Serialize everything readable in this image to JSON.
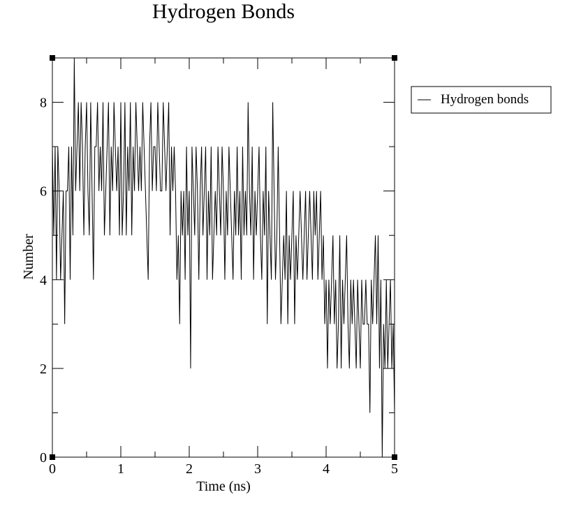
{
  "chart_data": {
    "type": "line",
    "title": "Hydrogen Bonds",
    "xlabel": "Time (ns)",
    "ylabel": "Number",
    "xlim": [
      0,
      5
    ],
    "ylim": [
      0,
      9
    ],
    "x_ticks": [
      0,
      1,
      2,
      3,
      4,
      5
    ],
    "y_ticks": [
      0,
      2,
      4,
      6,
      8
    ],
    "grid": false,
    "legend_position": "top-right outside",
    "series": [
      {
        "name": "Hydrogen bonds",
        "color": "#000000",
        "x": [
          0.0,
          0.02,
          0.04,
          0.06,
          0.08,
          0.1,
          0.12,
          0.14,
          0.16,
          0.18,
          0.2,
          0.22,
          0.24,
          0.26,
          0.28,
          0.3,
          0.32,
          0.34,
          0.36,
          0.38,
          0.4,
          0.42,
          0.44,
          0.46,
          0.48,
          0.5,
          0.52,
          0.54,
          0.56,
          0.58,
          0.6,
          0.62,
          0.64,
          0.66,
          0.68,
          0.7,
          0.72,
          0.74,
          0.76,
          0.78,
          0.8,
          0.82,
          0.84,
          0.86,
          0.88,
          0.9,
          0.92,
          0.94,
          0.96,
          0.98,
          1.0,
          1.02,
          1.04,
          1.06,
          1.08,
          1.1,
          1.12,
          1.14,
          1.16,
          1.18,
          1.2,
          1.22,
          1.24,
          1.26,
          1.28,
          1.3,
          1.32,
          1.34,
          1.36,
          1.38,
          1.4,
          1.42,
          1.44,
          1.46,
          1.48,
          1.5,
          1.52,
          1.54,
          1.56,
          1.58,
          1.6,
          1.62,
          1.64,
          1.66,
          1.68,
          1.7,
          1.72,
          1.74,
          1.76,
          1.78,
          1.8,
          1.82,
          1.84,
          1.86,
          1.88,
          1.9,
          1.92,
          1.94,
          1.96,
          1.98,
          2.0,
          2.02,
          2.04,
          2.06,
          2.08,
          2.1,
          2.12,
          2.14,
          2.16,
          2.18,
          2.2,
          2.22,
          2.24,
          2.26,
          2.28,
          2.3,
          2.32,
          2.34,
          2.36,
          2.38,
          2.4,
          2.42,
          2.44,
          2.46,
          2.48,
          2.5,
          2.52,
          2.54,
          2.56,
          2.58,
          2.6,
          2.62,
          2.64,
          2.66,
          2.68,
          2.7,
          2.72,
          2.74,
          2.76,
          2.78,
          2.8,
          2.82,
          2.84,
          2.86,
          2.88,
          2.9,
          2.92,
          2.94,
          2.96,
          2.98,
          3.0,
          3.02,
          3.04,
          3.06,
          3.08,
          3.1,
          3.12,
          3.14,
          3.16,
          3.18,
          3.2,
          3.22,
          3.24,
          3.26,
          3.28,
          3.3,
          3.32,
          3.34,
          3.36,
          3.38,
          3.4,
          3.42,
          3.44,
          3.46,
          3.48,
          3.5,
          3.52,
          3.54,
          3.56,
          3.58,
          3.6,
          3.62,
          3.64,
          3.66,
          3.68,
          3.7,
          3.72,
          3.74,
          3.76,
          3.78,
          3.8,
          3.82,
          3.84,
          3.86,
          3.88,
          3.9,
          3.92,
          3.94,
          3.96,
          3.98,
          4.0,
          4.02,
          4.04,
          4.06,
          4.08,
          4.1,
          4.12,
          4.14,
          4.16,
          4.18,
          4.2,
          4.22,
          4.24,
          4.26,
          4.28,
          4.3,
          4.32,
          4.34,
          4.36,
          4.38,
          4.4,
          4.42,
          4.44,
          4.46,
          4.48,
          4.5,
          4.52,
          4.54,
          4.56,
          4.58,
          4.6,
          4.62,
          4.64,
          4.66,
          4.68,
          4.7,
          4.72,
          4.74,
          4.76,
          4.78,
          4.8,
          4.82,
          4.84,
          4.86,
          4.88,
          4.9,
          4.92,
          4.94,
          4.96,
          4.98,
          5.0
        ],
        "values": [
          7,
          5,
          7,
          4,
          7,
          6,
          4,
          5,
          6,
          3,
          6,
          6,
          7,
          4,
          7,
          5,
          9,
          6,
          7,
          8,
          6,
          8,
          7,
          5,
          7,
          8,
          6,
          5,
          8,
          6,
          4,
          7,
          7,
          8,
          6,
          7,
          6,
          8,
          5,
          6,
          7,
          8,
          5,
          7,
          6,
          8,
          7,
          6,
          7,
          5,
          8,
          5,
          6,
          8,
          5,
          7,
          6,
          8,
          5,
          7,
          6,
          8,
          7,
          6,
          7,
          6,
          8,
          7,
          6,
          5,
          4,
          7,
          8,
          6,
          7,
          7,
          6,
          8,
          7,
          6,
          6,
          8,
          7,
          6,
          7,
          8,
          5,
          7,
          6,
          7,
          6,
          4,
          5,
          3,
          6,
          5,
          6,
          4,
          7,
          5,
          6,
          2,
          7,
          6,
          5,
          7,
          6,
          4,
          6,
          7,
          5,
          6,
          7,
          4,
          6,
          5,
          7,
          4,
          5,
          6,
          5,
          7,
          6,
          5,
          7,
          6,
          4,
          6,
          5,
          7,
          6,
          5,
          4,
          6,
          5,
          7,
          5,
          6,
          4,
          7,
          5,
          6,
          5,
          8,
          6,
          5,
          7,
          4,
          6,
          5,
          6,
          7,
          5,
          4,
          6,
          5,
          7,
          3,
          6,
          5,
          4,
          8,
          6,
          4,
          5,
          7,
          5,
          3,
          4,
          5,
          4,
          6,
          3,
          5,
          4,
          5,
          6,
          3,
          5,
          4,
          5,
          6,
          5,
          4,
          5,
          6,
          4,
          5,
          6,
          5,
          4,
          6,
          5,
          6,
          4,
          5,
          6,
          4,
          5,
          3,
          4,
          2,
          4,
          3,
          4,
          5,
          3,
          4,
          2,
          3,
          5,
          2,
          4,
          3,
          4,
          5,
          3,
          2,
          4,
          3,
          4,
          3,
          2,
          4,
          3,
          2,
          4,
          3,
          3,
          4,
          3,
          3,
          1,
          4,
          3,
          4,
          5,
          3,
          5,
          2,
          4,
          0,
          3,
          2,
          4,
          2,
          3,
          4,
          2,
          3,
          1
        ]
      }
    ]
  }
}
